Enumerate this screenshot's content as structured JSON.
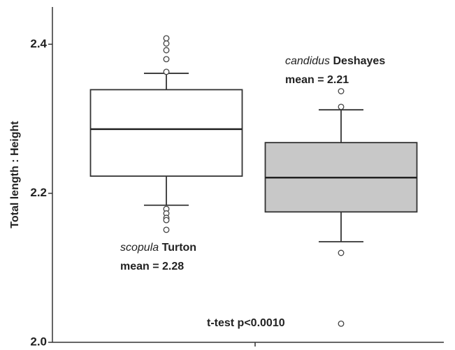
{
  "chart_data": {
    "type": "box",
    "y_label": "Total length : Height",
    "ylim": [
      2.0,
      2.45
    ],
    "yticks": [
      {
        "value": 2.0,
        "label": "2.0"
      },
      2.2,
      2.4
    ],
    "annotation": "t-test p<0.0010",
    "boxes": [
      {
        "name_italic": "scopula",
        "name_rest": "Turton",
        "mean_label": "mean = 2.28",
        "color": "#ffffff",
        "whisker_low": 2.184,
        "q1": 2.223,
        "median": 2.286,
        "q3": 2.339,
        "whisker_high": 2.361,
        "outliers": [
          2.408,
          2.401,
          2.392,
          2.38,
          2.363,
          2.179,
          2.173,
          2.167,
          2.164,
          2.151
        ]
      },
      {
        "name_italic": "candidus",
        "name_rest": "Deshayes",
        "mean_label": "mean = 2.21",
        "color": "#c8c8c8",
        "whisker_low": 2.135,
        "q1": 2.175,
        "median": 2.221,
        "q3": 2.268,
        "whisker_high": 2.312,
        "outliers": [
          2.337,
          2.316,
          2.12,
          2.025
        ]
      }
    ]
  }
}
